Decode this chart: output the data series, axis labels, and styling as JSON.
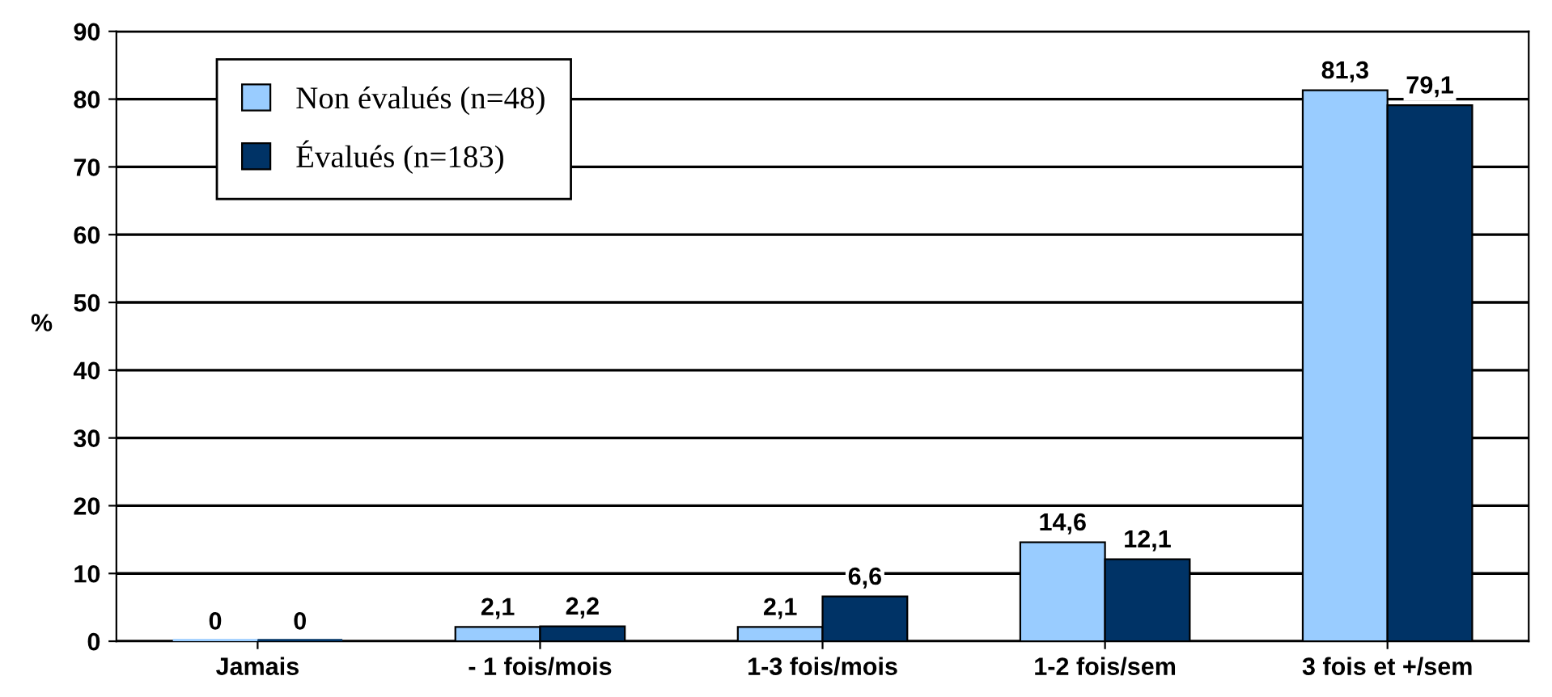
{
  "chart_data": {
    "type": "bar",
    "ylabel": "%",
    "categories": [
      "Jamais",
      "- 1 fois/mois",
      "1-3 fois/mois",
      "1-2 fois/sem",
      "3 fois et +/sem"
    ],
    "series": [
      {
        "name": "Non évalués (n=48)",
        "color": "#99ccff",
        "values": [
          0,
          2.1,
          2.1,
          14.6,
          81.3
        ],
        "value_labels": [
          "0",
          "2,1",
          "2,1",
          "14,6",
          "81,3"
        ]
      },
      {
        "name": "Évalués (n=183)",
        "color": "#003366",
        "values": [
          0,
          2.2,
          6.6,
          12.1,
          79.1
        ],
        "value_labels": [
          "0",
          "2,2",
          "6,6",
          "12,1",
          "79,1"
        ]
      }
    ],
    "ylim": [
      0,
      90
    ],
    "yticks": [
      0,
      10,
      20,
      30,
      40,
      50,
      60,
      70,
      80,
      90
    ],
    "grid": "y",
    "legend": "top left"
  }
}
